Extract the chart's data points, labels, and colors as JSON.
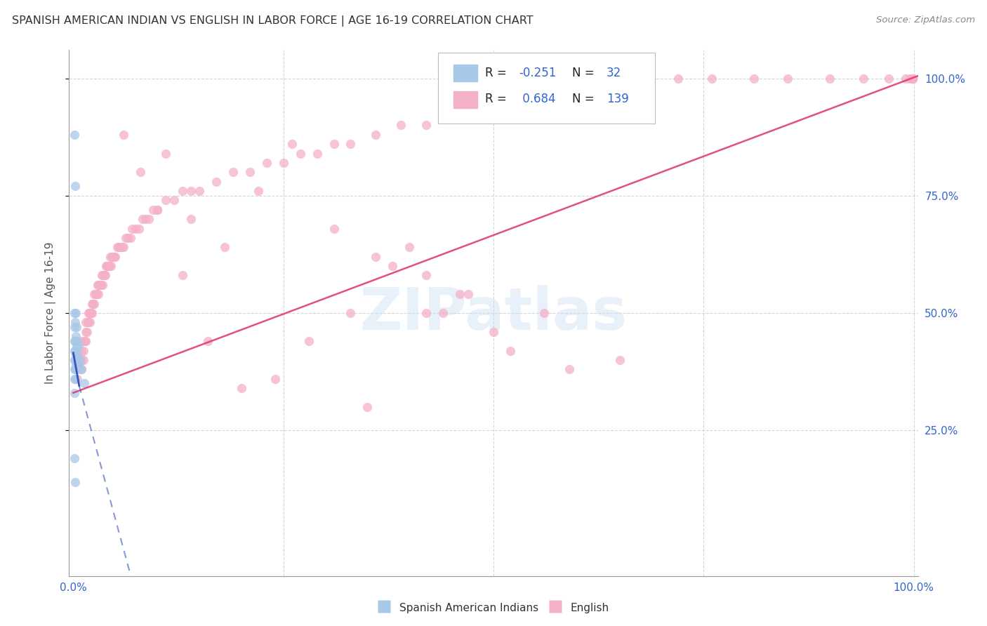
{
  "title": "SPANISH AMERICAN INDIAN VS ENGLISH IN LABOR FORCE | AGE 16-19 CORRELATION CHART",
  "source": "Source: ZipAtlas.com",
  "ylabel": "In Labor Force | Age 16-19",
  "r_blue": -0.251,
  "n_blue": 32,
  "r_pink": 0.684,
  "n_pink": 139,
  "legend_blue_label": "Spanish American Indians",
  "legend_pink_label": "English",
  "watermark": "ZIPatlas",
  "blue_color": "#a8c8e8",
  "pink_color": "#f4b0c8",
  "title_color": "#333333",
  "axis_label_color": "#555555",
  "tick_color": "#3366cc",
  "grid_color": "#cccccc",
  "blue_line_color": "#3355bb",
  "pink_line_color": "#dd3366",
  "legend_value_color": "#3366cc",
  "legend_label_color": "#222222",
  "blue_x": [
    0.001,
    0.001,
    0.001,
    0.001,
    0.001,
    0.001,
    0.001,
    0.001,
    0.002,
    0.002,
    0.002,
    0.002,
    0.002,
    0.002,
    0.002,
    0.003,
    0.003,
    0.003,
    0.003,
    0.004,
    0.004,
    0.004,
    0.005,
    0.005,
    0.006,
    0.006,
    0.008,
    0.01,
    0.001,
    0.002,
    0.001,
    0.013
  ],
  "blue_y": [
    0.88,
    0.5,
    0.47,
    0.44,
    0.42,
    0.4,
    0.38,
    0.36,
    0.77,
    0.48,
    0.44,
    0.42,
    0.4,
    0.38,
    0.36,
    0.5,
    0.45,
    0.41,
    0.39,
    0.47,
    0.43,
    0.38,
    0.44,
    0.41,
    0.43,
    0.39,
    0.4,
    0.38,
    0.19,
    0.14,
    0.33,
    0.35
  ],
  "pink_x": [
    0.005,
    0.007,
    0.008,
    0.01,
    0.01,
    0.01,
    0.01,
    0.012,
    0.012,
    0.013,
    0.014,
    0.015,
    0.015,
    0.015,
    0.016,
    0.017,
    0.018,
    0.018,
    0.019,
    0.02,
    0.02,
    0.021,
    0.022,
    0.022,
    0.023,
    0.024,
    0.025,
    0.025,
    0.026,
    0.027,
    0.028,
    0.029,
    0.03,
    0.03,
    0.031,
    0.032,
    0.033,
    0.034,
    0.035,
    0.035,
    0.036,
    0.037,
    0.038,
    0.039,
    0.04,
    0.041,
    0.042,
    0.043,
    0.044,
    0.045,
    0.046,
    0.047,
    0.048,
    0.049,
    0.05,
    0.052,
    0.054,
    0.056,
    0.058,
    0.06,
    0.062,
    0.065,
    0.068,
    0.07,
    0.074,
    0.078,
    0.082,
    0.086,
    0.09,
    0.095,
    0.1,
    0.11,
    0.12,
    0.13,
    0.14,
    0.15,
    0.17,
    0.19,
    0.21,
    0.23,
    0.25,
    0.27,
    0.29,
    0.31,
    0.33,
    0.36,
    0.39,
    0.42,
    0.45,
    0.48,
    0.52,
    0.56,
    0.6,
    0.64,
    0.68,
    0.72,
    0.76,
    0.81,
    0.85,
    0.9,
    0.94,
    0.97,
    0.99,
    0.995,
    0.998,
    0.999,
    0.999,
    0.999,
    0.999,
    0.999,
    0.06,
    0.08,
    0.1,
    0.13,
    0.16,
    0.2,
    0.24,
    0.28,
    0.33,
    0.38,
    0.44,
    0.5,
    0.56,
    0.35,
    0.42,
    0.46,
    0.52,
    0.59,
    0.65,
    0.4,
    0.11,
    0.14,
    0.18,
    0.22,
    0.26,
    0.31,
    0.36,
    0.42,
    0.47
  ],
  "pink_y": [
    0.36,
    0.38,
    0.4,
    0.38,
    0.4,
    0.42,
    0.44,
    0.4,
    0.42,
    0.44,
    0.44,
    0.44,
    0.46,
    0.48,
    0.46,
    0.48,
    0.48,
    0.5,
    0.5,
    0.48,
    0.5,
    0.5,
    0.52,
    0.5,
    0.52,
    0.52,
    0.52,
    0.54,
    0.54,
    0.54,
    0.54,
    0.56,
    0.56,
    0.54,
    0.56,
    0.56,
    0.56,
    0.58,
    0.58,
    0.56,
    0.58,
    0.58,
    0.58,
    0.6,
    0.6,
    0.6,
    0.6,
    0.6,
    0.62,
    0.6,
    0.62,
    0.62,
    0.62,
    0.62,
    0.62,
    0.64,
    0.64,
    0.64,
    0.64,
    0.64,
    0.66,
    0.66,
    0.66,
    0.68,
    0.68,
    0.68,
    0.7,
    0.7,
    0.7,
    0.72,
    0.72,
    0.74,
    0.74,
    0.76,
    0.76,
    0.76,
    0.78,
    0.8,
    0.8,
    0.82,
    0.82,
    0.84,
    0.84,
    0.86,
    0.86,
    0.88,
    0.9,
    0.9,
    0.92,
    0.94,
    0.94,
    0.96,
    0.98,
    0.98,
    1.0,
    1.0,
    1.0,
    1.0,
    1.0,
    1.0,
    1.0,
    1.0,
    1.0,
    1.0,
    1.0,
    1.0,
    1.0,
    1.0,
    1.0,
    1.0,
    0.88,
    0.8,
    0.72,
    0.58,
    0.44,
    0.34,
    0.36,
    0.44,
    0.5,
    0.6,
    0.5,
    0.46,
    0.5,
    0.3,
    0.5,
    0.54,
    0.42,
    0.38,
    0.4,
    0.64,
    0.84,
    0.7,
    0.64,
    0.76,
    0.86,
    0.68,
    0.62,
    0.58,
    0.54
  ]
}
